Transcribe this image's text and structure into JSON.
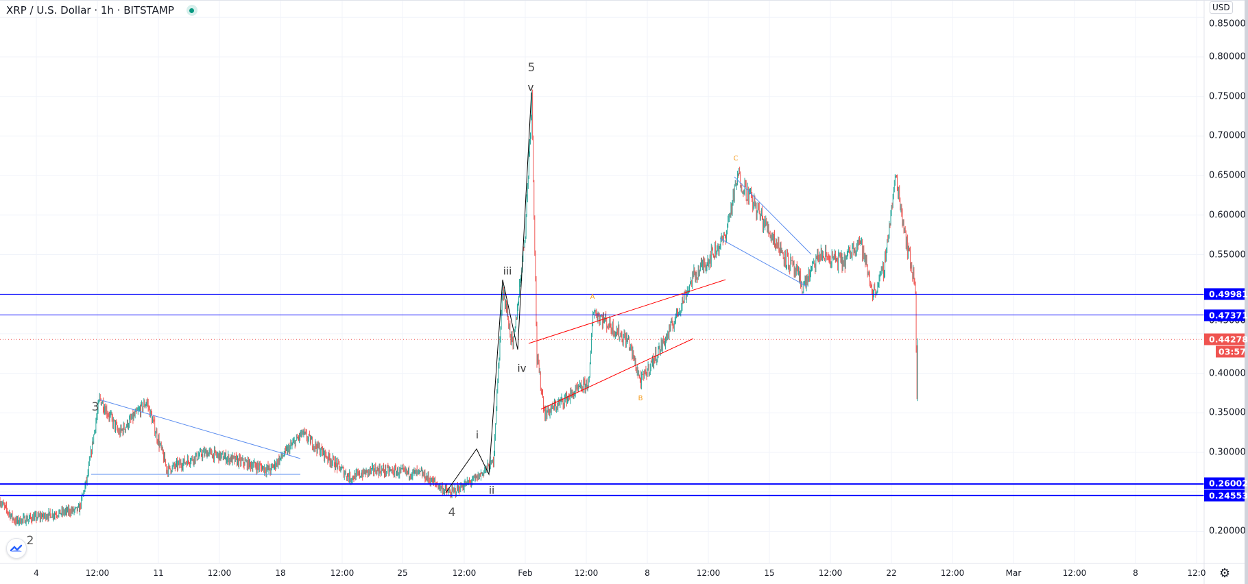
{
  "header": {
    "title": "XRP / U.S. Dollar · 1h · BITSTAMP",
    "market_status_icon": "market-open-dot",
    "status_color": "#089981"
  },
  "price_scale": {
    "currency": "USD",
    "ticks": [
      "0.85000",
      "0.80000",
      "0.75000",
      "0.70000",
      "0.65000",
      "0.60000",
      "0.55000",
      "0.45000",
      "0.40000",
      "0.35000",
      "0.30000",
      "0.20000"
    ]
  },
  "time_scale": {
    "labels": [
      "4",
      "12:00",
      "11",
      "12:00",
      "18",
      "12:00",
      "25",
      "12:00",
      "Feb",
      "12:00",
      "8",
      "12:00",
      "15",
      "12:00",
      "22",
      "12:00",
      "Mar",
      "12:00",
      "8",
      "12:0"
    ],
    "settings_icon": "gear-icon"
  },
  "levels": [
    {
      "price": "0.49981",
      "color": "#0000ff"
    },
    {
      "price": "0.47371",
      "color": "#0000ff"
    },
    {
      "price": "0.26002",
      "color": "#0000ff"
    },
    {
      "price": "0.24553",
      "color": "#0000ff"
    }
  ],
  "last_price": {
    "price": "0.44278",
    "countdown": "03:57",
    "color": "#ef5350"
  },
  "wave_labels": [
    "3",
    "4",
    "5",
    "2",
    "v",
    "iii",
    "iv",
    "i",
    "ii",
    "A",
    "B",
    "C"
  ],
  "chart_data": {
    "type": "candlestick",
    "symbol": "XRP / U.S. Dollar",
    "interval": "1h",
    "exchange": "BITSTAMP",
    "ylim": [
      0.17,
      0.86
    ],
    "colors": {
      "up": "#26a69a",
      "down": "#ef5350"
    },
    "grid": true,
    "path": [
      [
        "2021-01-01T22:00",
        0.238
      ],
      [
        "2021-01-02T19:00",
        0.213
      ],
      [
        "2021-01-06T11:00",
        0.228
      ],
      [
        "2021-01-06T22:00",
        0.268
      ],
      [
        "2021-01-07T15:00",
        0.369
      ],
      [
        "2021-01-08T18:00",
        0.324
      ],
      [
        "2021-01-10T08:00",
        0.364
      ],
      [
        "2021-01-11T12:00",
        0.278
      ],
      [
        "2021-01-13T18:00",
        0.3
      ],
      [
        "2021-01-17T10:00",
        0.278
      ],
      [
        "2021-01-19T06:00",
        0.324
      ],
      [
        "2021-01-22T00:00",
        0.268
      ],
      [
        "2021-01-23T09:00",
        0.278
      ],
      [
        "2021-01-26T02:00",
        0.273
      ],
      [
        "2021-01-27T17:00",
        0.248
      ],
      [
        "2021-01-29T07:00",
        0.268
      ],
      [
        "2021-01-30T05:00",
        0.288
      ],
      [
        "2021-01-30T18:00",
        0.51
      ],
      [
        "2021-01-31T08:00",
        0.43
      ],
      [
        "2021-02-01T01:00",
        0.58
      ],
      [
        "2021-02-01T10:00",
        0.75
      ],
      [
        "2021-02-01T17:00",
        0.42
      ],
      [
        "2021-02-02T04:00",
        0.349
      ],
      [
        "2021-02-04T17:00",
        0.389
      ],
      [
        "2021-02-04T22:00",
        0.48
      ],
      [
        "2021-02-06T23:00",
        0.44
      ],
      [
        "2021-02-07T16:00",
        0.389
      ],
      [
        "2021-02-09T06:00",
        0.45
      ],
      [
        "2021-02-10T15:00",
        0.52
      ],
      [
        "2021-02-12T11:00",
        0.57
      ],
      [
        "2021-02-13T06:00",
        0.65
      ],
      [
        "2021-02-14T18:00",
        0.59
      ],
      [
        "2021-02-17T00:00",
        0.51
      ],
      [
        "2021-02-17T22:00",
        0.55
      ],
      [
        "2021-02-19T07:00",
        0.54
      ],
      [
        "2021-02-20T05:00",
        0.57
      ],
      [
        "2021-02-21T00:00",
        0.5
      ],
      [
        "2021-02-21T14:00",
        0.53
      ],
      [
        "2021-02-22T07:00",
        0.65
      ],
      [
        "2021-02-22T23:00",
        0.56
      ],
      [
        "2021-02-23T10:00",
        0.51
      ],
      [
        "2021-02-23T12:00",
        0.37
      ],
      [
        "2021-02-23T13:00",
        0.44278
      ]
    ]
  }
}
